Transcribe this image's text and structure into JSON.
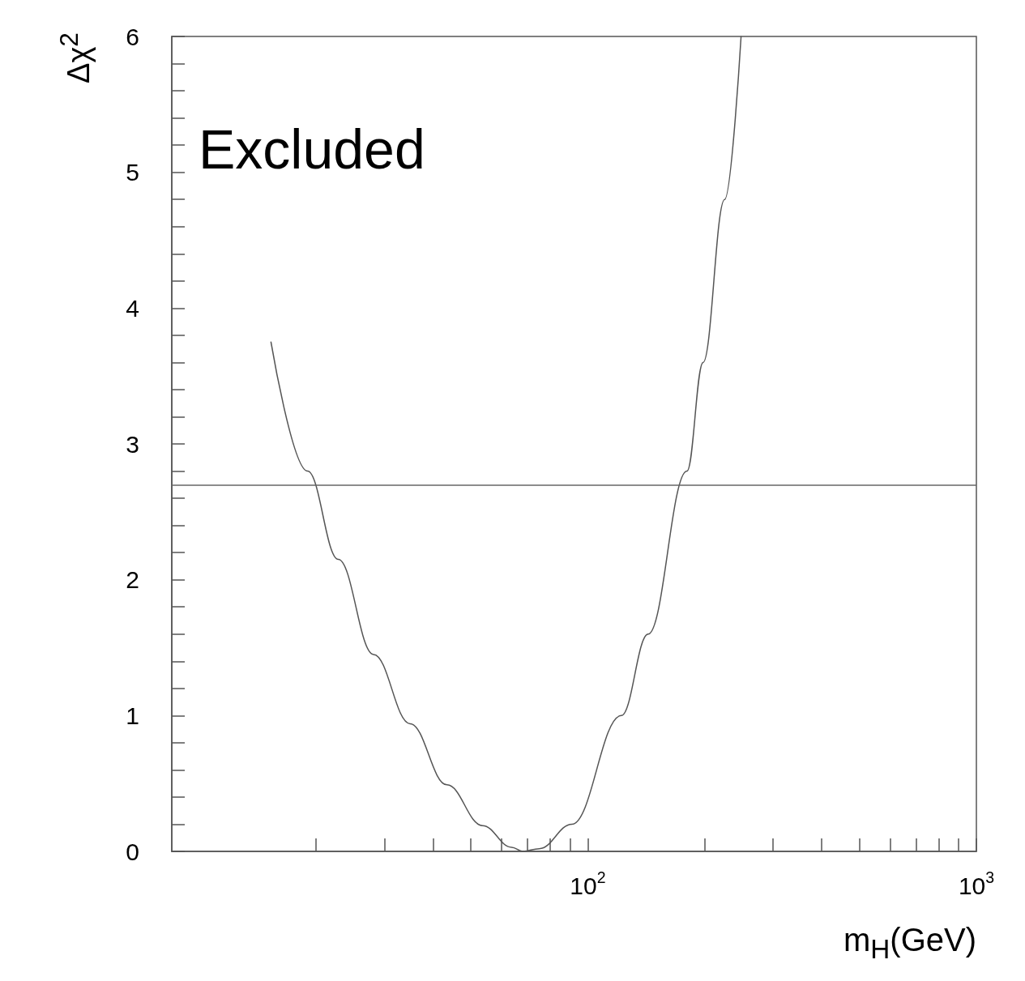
{
  "chart_data": {
    "type": "line",
    "xlabel": "m$_{H}$(GeV)",
    "ylabel": "Δχ$^{2}$",
    "annotations": [
      "Excluded"
    ],
    "log": "x",
    "grid": false,
    "marker": "none",
    "line_style": "solid",
    "xlim": [
      8.5,
      1000
    ],
    "ylim": [
      0,
      6
    ],
    "xticks": [
      {
        "value": 20,
        "label": null
      },
      {
        "value": 30,
        "label": null
      },
      {
        "value": 40,
        "label": null
      },
      {
        "value": 50,
        "label": null
      },
      {
        "value": 60,
        "label": null
      },
      {
        "value": 70,
        "label": null
      },
      {
        "value": 80,
        "label": null
      },
      {
        "value": 90,
        "label": null
      },
      {
        "value": 100,
        "label": "10$^{2}$"
      },
      {
        "value": 200,
        "label": null
      },
      {
        "value": 300,
        "label": null
      },
      {
        "value": 400,
        "label": null
      },
      {
        "value": 500,
        "label": null
      },
      {
        "value": 600,
        "label": null
      },
      {
        "value": 700,
        "label": null
      },
      {
        "value": 800,
        "label": null
      },
      {
        "value": 900,
        "label": null
      },
      {
        "value": 1000,
        "label": "10$^{3}$"
      }
    ],
    "yticks": [
      0,
      {
        "value": 0.2,
        "label": null
      },
      {
        "value": 0.4,
        "label": null
      },
      {
        "value": 0.6,
        "label": null
      },
      {
        "value": 0.8,
        "label": null
      },
      1,
      {
        "value": 1.2,
        "label": null
      },
      {
        "value": 1.4,
        "label": null
      },
      {
        "value": 1.6,
        "label": null
      },
      {
        "value": 1.8,
        "label": null
      },
      2,
      {
        "value": 2.2,
        "label": null
      },
      {
        "value": 2.4,
        "label": null
      },
      {
        "value": 2.6,
        "label": null
      },
      {
        "value": 2.8,
        "label": null
      },
      3,
      {
        "value": 3.2,
        "label": null
      },
      {
        "value": 3.4,
        "label": null
      },
      {
        "value": 3.6,
        "label": null
      },
      {
        "value": 3.8,
        "label": null
      },
      4,
      {
        "value": 4.2,
        "label": null
      },
      {
        "value": 4.4,
        "label": null
      },
      {
        "value": 4.6,
        "label": null
      },
      {
        "value": 4.8,
        "label": null
      },
      5,
      {
        "value": 5.2,
        "label": null
      },
      {
        "value": 5.4,
        "label": null
      },
      {
        "value": 5.6,
        "label": null
      },
      {
        "value": 5.8,
        "label": null
      },
      6
    ],
    "ref_lines": [
      {
        "axis": "y",
        "value": 2.7,
        "color": "#666666"
      }
    ],
    "series": [
      {
        "color": "#555555",
        "x": [
          15.3,
          19,
          22.8,
          28.1,
          34.9,
          43.4,
          53.6,
          63.7,
          68,
          75,
          91,
          122,
          143,
          180,
          198,
          225,
          248
        ],
        "values": [
          3.75,
          2.8,
          2.15,
          1.45,
          0.94,
          0.49,
          0.19,
          0.03,
          0,
          0.02,
          0.2,
          1.0,
          1.6,
          2.8,
          3.6,
          4.8,
          6.0
        ]
      }
    ]
  }
}
